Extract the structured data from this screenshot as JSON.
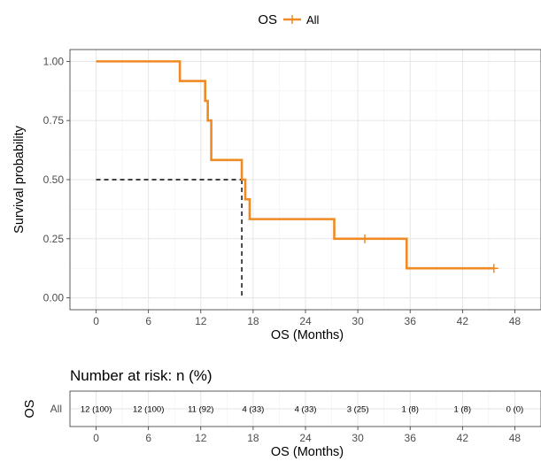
{
  "chart_data": [
    {
      "type": "line",
      "subtype": "kaplan-meier",
      "legend": {
        "title": "OS",
        "entries": [
          "All"
        ],
        "position": "top"
      },
      "xlabel": "OS (Months)",
      "ylabel": "Survival probability",
      "xlim": [
        -3,
        51
      ],
      "ylim": [
        -0.05,
        1.05
      ],
      "xticks": [
        0,
        6,
        12,
        18,
        24,
        30,
        36,
        42,
        48
      ],
      "yticks": [
        0,
        0.25,
        0.5,
        0.75,
        1
      ],
      "ytick_labels": [
        "0.00",
        "0.25",
        "0.50",
        "0.75",
        "1.00"
      ],
      "grid": true,
      "series": [
        {
          "name": "All",
          "color": "#F08A24",
          "steps": [
            [
              0,
              1.0
            ],
            [
              9.6,
              0.917
            ],
            [
              12.5,
              0.833
            ],
            [
              12.8,
              0.75
            ],
            [
              13.2,
              0.583
            ],
            [
              16.7,
              0.5
            ],
            [
              17.1,
              0.417
            ],
            [
              17.6,
              0.333
            ],
            [
              27.3,
              0.25
            ],
            [
              35.6,
              0.125
            ],
            [
              45.6,
              0.125
            ]
          ],
          "censored": [
            [
              30.8,
              0.25
            ],
            [
              45.6,
              0.125
            ]
          ]
        }
      ],
      "median_line": {
        "x": 16.7,
        "y": 0.5,
        "style": "dashed"
      }
    },
    {
      "type": "table",
      "title": "Number at risk: n (%)",
      "row_label": "All",
      "group_axis_label": "OS",
      "xlabel": "OS (Months)",
      "times": [
        0,
        6,
        12,
        18,
        24,
        30,
        36,
        42,
        48
      ],
      "cells": [
        "12 (100)",
        "12 (100)",
        "11 (92)",
        "4 (33)",
        "4 (33)",
        "3 (25)",
        "1 (8)",
        "1 (8)",
        "0 (0)"
      ]
    }
  ]
}
